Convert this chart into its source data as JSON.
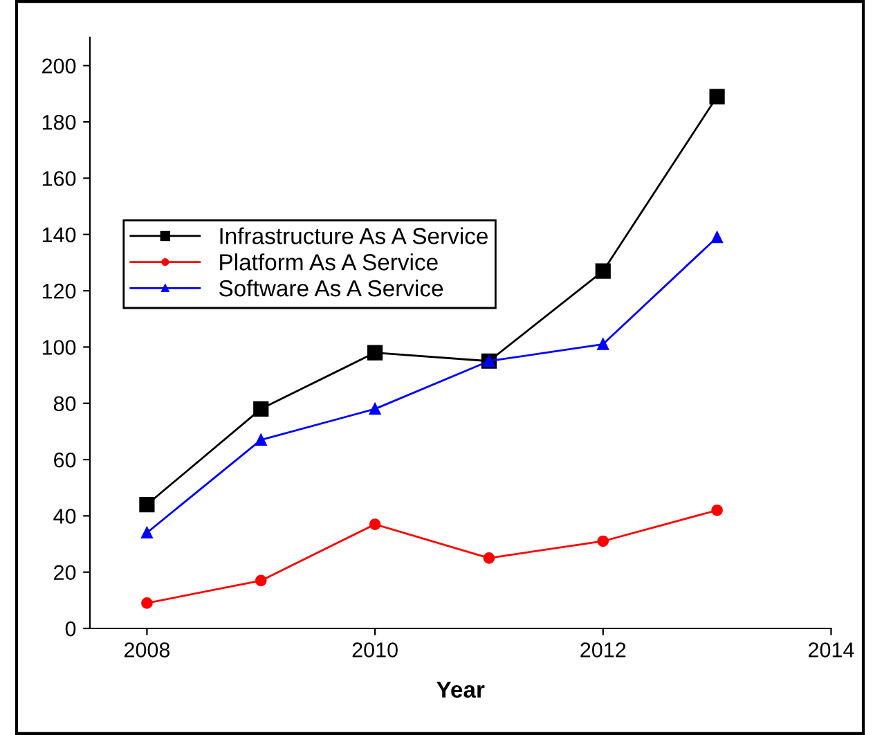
{
  "chart_data": {
    "type": "line",
    "xlabel": "Year",
    "x": [
      2008,
      2009,
      2010,
      2011,
      2012,
      2013
    ],
    "series": [
      {
        "name": "Infrastructure As A Service",
        "color": "#000000",
        "marker": "square",
        "values": [
          44,
          78,
          98,
          95,
          127,
          189
        ]
      },
      {
        "name": "Platform As A Service",
        "color": "#ff0000",
        "marker": "circle",
        "values": [
          9,
          17,
          37,
          25,
          31,
          42
        ]
      },
      {
        "name": "Software As A Service",
        "color": "#0000ff",
        "marker": "triangle",
        "values": [
          34,
          67,
          78,
          95,
          101,
          139
        ]
      }
    ],
    "xlim": [
      2007.5,
      2014
    ],
    "xticks": [
      2008,
      2010,
      2012,
      2014
    ],
    "ylim": [
      0,
      210
    ],
    "yticks": [
      0,
      20,
      40,
      60,
      80,
      100,
      120,
      140,
      160,
      180,
      200
    ],
    "grid": false,
    "legend": "top left",
    "line_style": "solid"
  }
}
